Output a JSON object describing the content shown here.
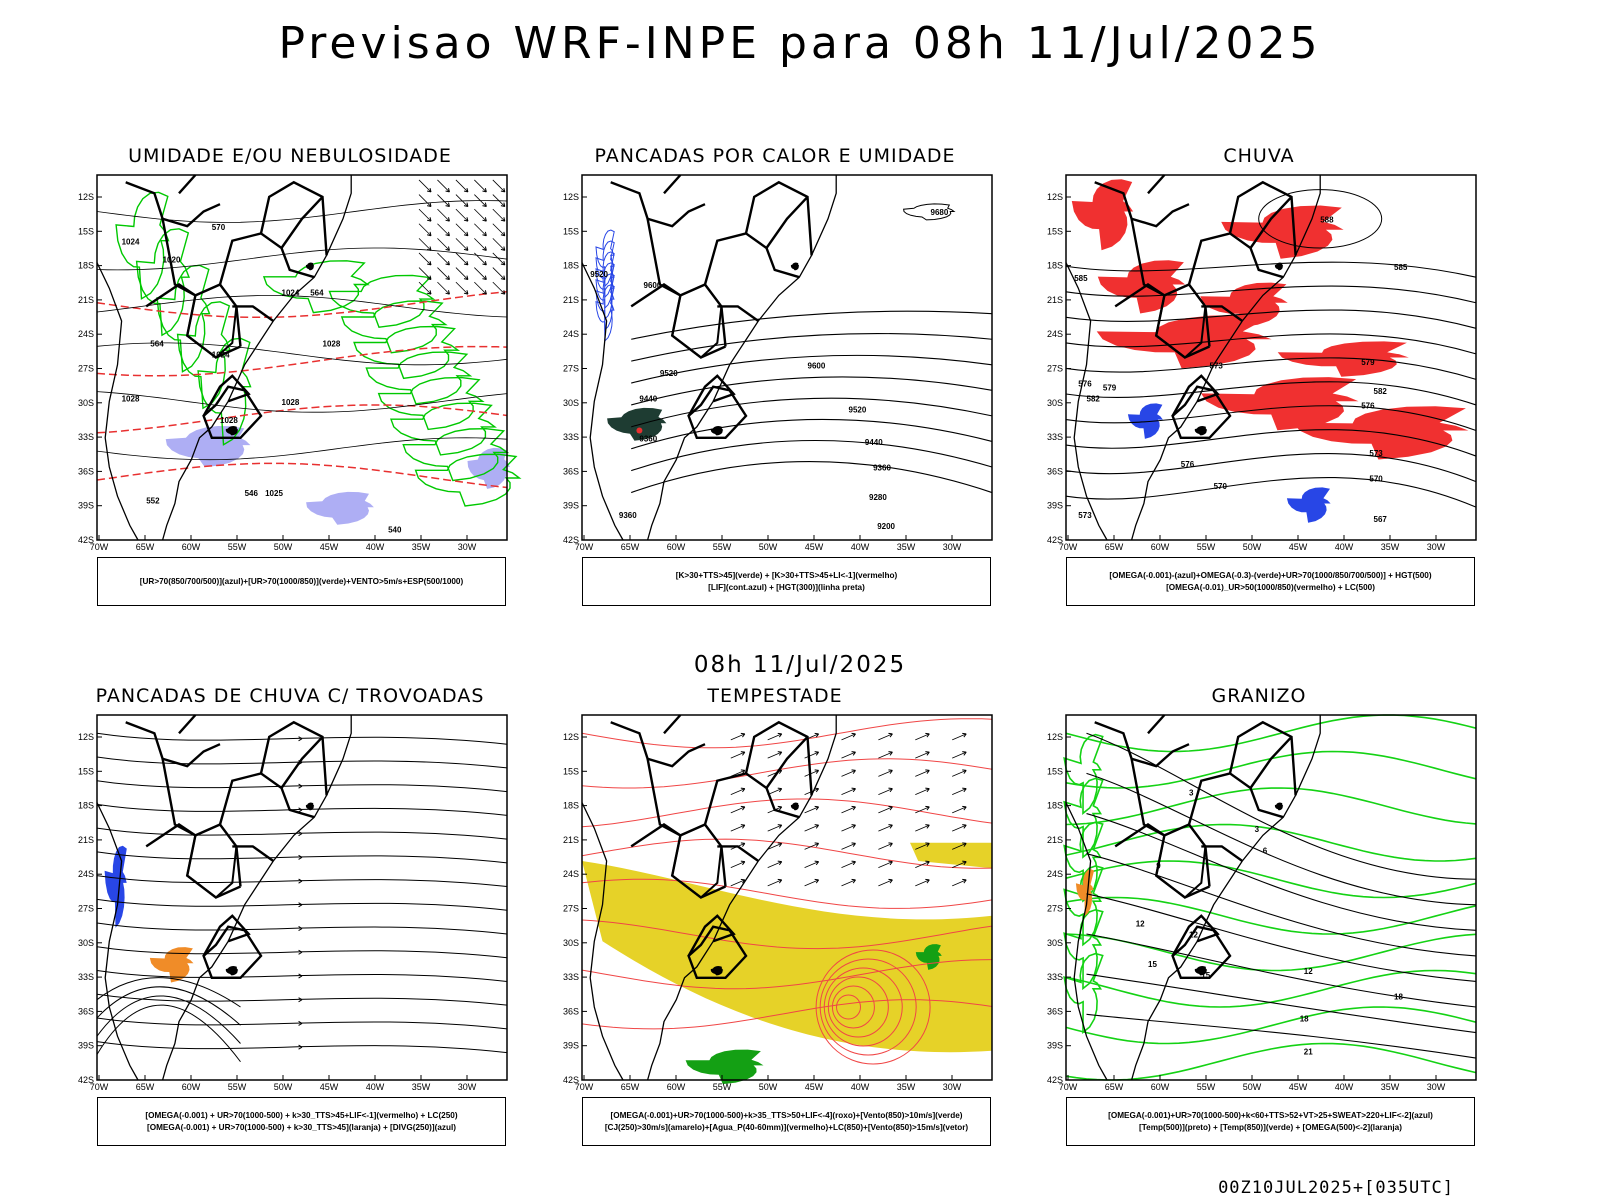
{
  "main_title": "Previsao WRF-INPE  para 08h 11/Jul/2025",
  "mid_title": "08h 11/Jul/2025",
  "footer": "00Z10JUL2025+[035UTC]",
  "chart_data": [
    {
      "type": "map",
      "title": "UMIDADE E/OU NEBULOSIDADE",
      "lat_ticks": [
        "12S",
        "15S",
        "18S",
        "21S",
        "24S",
        "27S",
        "30S",
        "33S",
        "36S",
        "39S",
        "42S"
      ],
      "lon_ticks": [
        "70W",
        "65W",
        "60W",
        "55W",
        "50W",
        "45W",
        "40W",
        "35W",
        "30W"
      ],
      "contour_labels": [
        "1024",
        "1020",
        "1024",
        "1028",
        "1028",
        "1024",
        "1028",
        "1028",
        "1025",
        "570",
        "564",
        "552",
        "540",
        "546",
        "564"
      ],
      "legend": [
        "[UR>70(850/700/500)](azul)+[UR>70(1000/850)](verde)+VENTO>5m/s+ESP(500/1000)"
      ],
      "colors": {
        "shade": "#8c8cf0",
        "green": "#00c800",
        "red": "#e83030",
        "black": "#000000"
      }
    },
    {
      "type": "map",
      "title": "PANCADAS POR CALOR E UMIDADE",
      "lat_ticks": [
        "12S",
        "15S",
        "18S",
        "21S",
        "24S",
        "27S",
        "30S",
        "33S",
        "36S",
        "39S",
        "42S"
      ],
      "lon_ticks": [
        "70W",
        "65W",
        "60W",
        "55W",
        "50W",
        "45W",
        "40W",
        "35W",
        "30W"
      ],
      "contour_labels": [
        "9680",
        "9520",
        "9600",
        "9520",
        "9440",
        "9600",
        "9520",
        "9440",
        "9360",
        "9280",
        "9200",
        "9360",
        "9360"
      ],
      "legend": [
        "[K>30+TTS>45](verde) + [K>30+TTS>45+LI<-1](vermelho)",
        "[LIF](cont.azul) + [HGT(300)](linha preta)"
      ],
      "colors": {
        "dark": "#1e3c32",
        "blue": "#2846e6",
        "red": "#e83030"
      }
    },
    {
      "type": "map",
      "title": "CHUVA",
      "lat_ticks": [
        "12S",
        "15S",
        "18S",
        "21S",
        "24S",
        "27S",
        "30S",
        "33S",
        "36S",
        "39S",
        "42S"
      ],
      "lon_ticks": [
        "70W",
        "65W",
        "60W",
        "55W",
        "50W",
        "45W",
        "40W",
        "35W",
        "30W"
      ],
      "contour_labels": [
        "588",
        "585",
        "582",
        "579",
        "576",
        "573",
        "570",
        "567",
        "573",
        "576",
        "579",
        "582",
        "585",
        "570",
        "573",
        "576"
      ],
      "legend": [
        "[OMEGA(-0.001)-(azul)+OMEGA(-0.3)-(verde)+UR>70(1000/850/700/500)] + HGT(500)",
        "[OMEGA(-0.01)_UR>50(1000/850)(vermelho) + LC(500)"
      ],
      "colors": {
        "red": "#f03030",
        "blue": "#2846e6",
        "green": "#00b400"
      }
    },
    {
      "type": "map",
      "title": "PANCADAS DE CHUVA C/ TROVOADAS",
      "lat_ticks": [
        "12S",
        "15S",
        "18S",
        "21S",
        "24S",
        "27S",
        "30S",
        "33S",
        "36S",
        "39S",
        "42S"
      ],
      "lon_ticks": [
        "70W",
        "65W",
        "60W",
        "55W",
        "50W",
        "45W",
        "40W",
        "35W",
        "30W"
      ],
      "contour_labels": [],
      "legend": [
        "[OMEGA(-0.001) + UR>70(1000-500) + k>30_TTS>45+LIF<-1](vermelho) + LC(250)",
        "[OMEGA(-0.001) + UR>70(1000-500) + k>30_TTS>45](laranja) + [DIVG(250)](azul)"
      ],
      "colors": {
        "orange": "#f08c28",
        "blue": "#2846e6"
      }
    },
    {
      "type": "map",
      "title": "TEMPESTADE",
      "lat_ticks": [
        "12S",
        "15S",
        "18S",
        "21S",
        "24S",
        "27S",
        "30S",
        "33S",
        "36S",
        "39S",
        "42S"
      ],
      "lon_ticks": [
        "70W",
        "65W",
        "60W",
        "55W",
        "50W",
        "45W",
        "40W",
        "35W",
        "30W"
      ],
      "contour_labels": [],
      "legend": [
        "[OMEGA(-0.001)+UR>70(1000-500)+k>35_TTS>50+LIF<-4](roxo)+[Vento(850)>10m/s](verde)",
        "[CJ(250)>30m/s](amarelo)+[Agua_P(40-60mm)](vermelho)+LC(850)+[Vento(850)>15m/s](vetor)"
      ],
      "colors": {
        "yellow": "#e6d228",
        "red": "#f04646",
        "green": "#14a014"
      }
    },
    {
      "type": "map",
      "title": "GRANIZO",
      "lat_ticks": [
        "12S",
        "15S",
        "18S",
        "21S",
        "24S",
        "27S",
        "30S",
        "33S",
        "36S",
        "39S",
        "42S"
      ],
      "lon_ticks": [
        "70W",
        "65W",
        "60W",
        "55W",
        "50W",
        "45W",
        "40W",
        "35W",
        "30W"
      ],
      "contour_labels": [
        "3",
        "3",
        "6",
        "9",
        "12",
        "12",
        "12",
        "15",
        "15",
        "18",
        "18",
        "21"
      ],
      "legend": [
        "[OMEGA(-0.001)+UR>70(1000-500)+k<60+TTS>52+VT>25+SWEAT>220+LIF<-2](azul)",
        "[Temp(500)](preto) + [Temp(850)](verde) + [OMEGA(500)<-2](laranja)"
      ],
      "colors": {
        "green": "#14d214",
        "orange": "#f08c28"
      }
    }
  ]
}
